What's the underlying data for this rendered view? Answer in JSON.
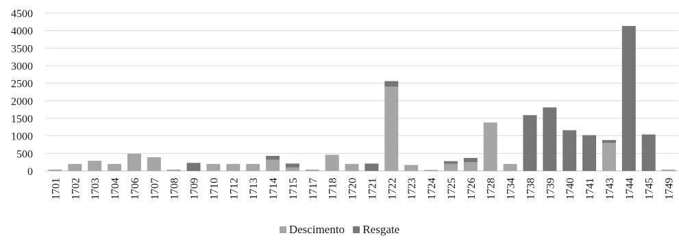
{
  "chart_data": {
    "type": "bar",
    "stacked": true,
    "title": "",
    "xlabel": "",
    "ylabel": "",
    "ylim": [
      0,
      4500
    ],
    "yticks": [
      0,
      500,
      1000,
      1500,
      2000,
      2500,
      3000,
      3500,
      4000,
      4500
    ],
    "grid": true,
    "legend_position": "bottom",
    "categories": [
      "1701",
      "1702",
      "1703",
      "1704",
      "1706",
      "1707",
      "1708",
      "1709",
      "1710",
      "1712",
      "1713",
      "1714",
      "1715",
      "1717",
      "1718",
      "1720",
      "1721",
      "1722",
      "1723",
      "1724",
      "1725",
      "1726",
      "1728",
      "1734",
      "1738",
      "1739",
      "1740",
      "1741",
      "1743",
      "1744",
      "1745",
      "1749"
    ],
    "series": [
      {
        "name": "Descimento",
        "color": "#a6a6a6",
        "values": [
          40,
          200,
          290,
          200,
          490,
          390,
          40,
          0,
          200,
          200,
          200,
          320,
          100,
          40,
          460,
          200,
          0,
          2400,
          170,
          30,
          200,
          250,
          1380,
          200,
          0,
          0,
          0,
          0,
          800,
          0,
          0,
          40
        ]
      },
      {
        "name": "Resgate",
        "color": "#767676",
        "values": [
          0,
          0,
          0,
          0,
          0,
          0,
          0,
          230,
          0,
          0,
          0,
          110,
          110,
          0,
          0,
          0,
          210,
          160,
          0,
          0,
          80,
          120,
          0,
          0,
          1590,
          1810,
          1160,
          1020,
          80,
          4130,
          1040,
          0
        ]
      }
    ]
  }
}
